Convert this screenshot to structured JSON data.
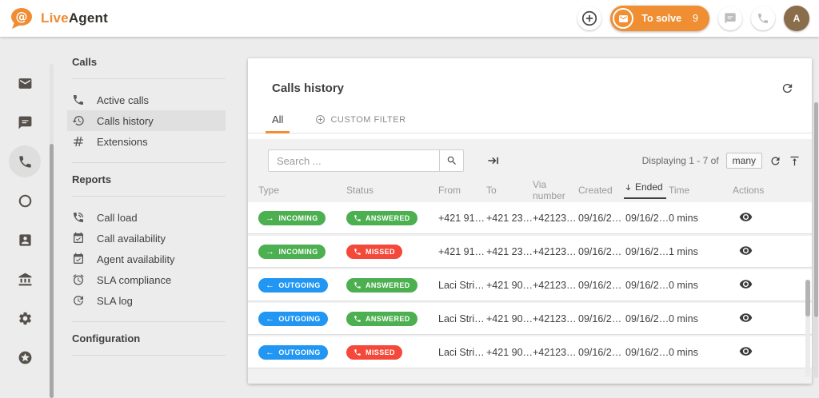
{
  "header": {
    "brand": {
      "name_primary": "Live",
      "name_secondary": "Agent"
    },
    "to_solve": {
      "label": "To solve",
      "count": "9"
    },
    "avatar_initial": "A"
  },
  "colors": {
    "accent_orange": "#ef8e32",
    "green": "#4caf50",
    "blue": "#2196f3",
    "red": "#f4483a",
    "avatar_brown": "#8a6d4a"
  },
  "icon_rail": {
    "items": [
      {
        "icon": "mail",
        "active": false
      },
      {
        "icon": "chat",
        "active": false
      },
      {
        "icon": "phone",
        "active": true
      },
      {
        "icon": "circle",
        "active": false
      },
      {
        "icon": "contact-card",
        "active": false
      },
      {
        "icon": "bank",
        "active": false
      },
      {
        "icon": "gear",
        "active": false
      },
      {
        "icon": "star-circle",
        "active": false
      }
    ]
  },
  "sidebar": {
    "sections": [
      {
        "title": "Calls",
        "items": [
          {
            "icon": "phone",
            "label": "Active calls",
            "active": false
          },
          {
            "icon": "history",
            "label": "Calls history",
            "active": true
          },
          {
            "icon": "hash",
            "label": "Extensions",
            "active": false
          }
        ]
      },
      {
        "title": "Reports",
        "items": [
          {
            "icon": "phone-call",
            "label": "Call load",
            "active": false
          },
          {
            "icon": "calendar-check",
            "label": "Call availability",
            "active": false
          },
          {
            "icon": "calendar-check",
            "label": "Agent availability",
            "active": false
          },
          {
            "icon": "alarm",
            "label": "SLA compliance",
            "active": false
          },
          {
            "icon": "clock-refresh",
            "label": "SLA log",
            "active": false
          }
        ]
      },
      {
        "title": "Configuration",
        "items": []
      }
    ]
  },
  "main": {
    "title": "Calls history",
    "tabs": [
      {
        "label": "All",
        "active": true
      },
      {
        "label": "CUSTOM FILTER",
        "active": false,
        "icon": "plus-circle"
      }
    ],
    "toolbar": {
      "search_placeholder": "Search ...",
      "displaying_text": "Displaying 1 - 7 of",
      "displaying_count": "many"
    },
    "table": {
      "columns": [
        "Type",
        "Status",
        "From",
        "To",
        "Via number",
        "Created",
        "Ended",
        "Time",
        "Actions"
      ],
      "sorted_column": "Ended",
      "sort_direction": "desc",
      "rows": [
        {
          "type": "INCOMING",
          "status": "ANSWERED",
          "from": "+421 91…",
          "to": "+421 23…",
          "via": "+42123…",
          "created": "09/16/2…",
          "ended": "09/16/2…",
          "time": "0 mins"
        },
        {
          "type": "INCOMING",
          "status": "MISSED",
          "from": "+421 91…",
          "to": "+421 23…",
          "via": "+42123…",
          "created": "09/16/2…",
          "ended": "09/16/2…",
          "time": "1 mins"
        },
        {
          "type": "OUTGOING",
          "status": "ANSWERED",
          "from": "Laci Stri…",
          "to": "+421 90…",
          "via": "+42123…",
          "created": "09/16/2…",
          "ended": "09/16/2…",
          "time": "0 mins"
        },
        {
          "type": "OUTGOING",
          "status": "ANSWERED",
          "from": "Laci Stri…",
          "to": "+421 90…",
          "via": "+42123…",
          "created": "09/16/2…",
          "ended": "09/16/2…",
          "time": "0 mins"
        },
        {
          "type": "OUTGOING",
          "status": "MISSED",
          "from": "Laci Stri…",
          "to": "+421 90…",
          "via": "+42123…",
          "created": "09/16/2…",
          "ended": "09/16/2…",
          "time": "0 mins"
        }
      ]
    }
  }
}
